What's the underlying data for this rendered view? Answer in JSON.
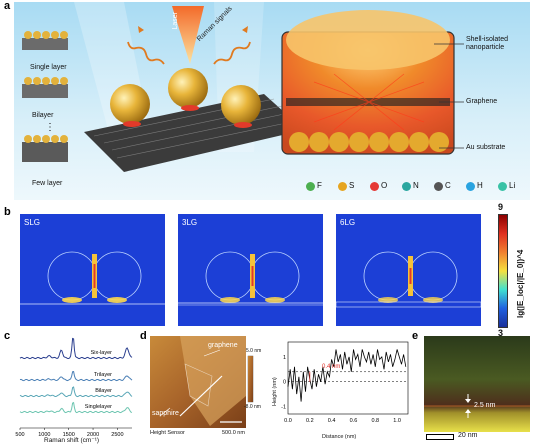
{
  "panel_labels": {
    "a": "a",
    "b": "b",
    "c": "c",
    "d": "d",
    "e": "e"
  },
  "panel_a": {
    "laser": "Laser",
    "raman": "Raman signals",
    "layers": [
      "Single layer",
      "Bilayer",
      "Few layer"
    ],
    "dots": "⋮",
    "callouts": {
      "shell": "Shell-isolated nanoparticle",
      "graphene": "Graphene",
      "au": "Au substrate"
    },
    "legend": [
      {
        "sym": "F",
        "color": "#4caf50"
      },
      {
        "sym": "S",
        "color": "#e6a520"
      },
      {
        "sym": "O",
        "color": "#e53935"
      },
      {
        "sym": "N",
        "color": "#2aa7a0"
      },
      {
        "sym": "C",
        "color": "#555555"
      },
      {
        "sym": "H",
        "color": "#29a3e0"
      },
      {
        "sym": "Li",
        "color": "#39c2a6"
      }
    ]
  },
  "panel_b": {
    "maps": [
      "SLG",
      "3LG",
      "6LG"
    ],
    "colorbar": {
      "max": "9",
      "min": "3",
      "label": "lg(|E_loc|/|E_0|)^4"
    }
  },
  "chart_data": {
    "type": "line",
    "xlabel": "Raman shift (cm⁻¹)",
    "x_ticks": [
      "500",
      "1000",
      "1500",
      "2000",
      "2500"
    ],
    "xlim": [
      500,
      2800
    ],
    "series": [
      {
        "name": "Six-layer",
        "color": "#2b3f8f"
      },
      {
        "name": "Trilayer",
        "color": "#4a7fb5"
      },
      {
        "name": "Bilayer",
        "color": "#5aa7b7"
      },
      {
        "name": "Singlelayer",
        "color": "#6cc5b0"
      }
    ]
  },
  "panel_d": {
    "graphene": "graphene",
    "sapphire": "sapphire",
    "sensor": "Height Sensor",
    "scale": "500.0 nm",
    "cb_max": "5.0 nm",
    "cb_min": "-8.0 nm",
    "step": "0.4 nm",
    "profile": {
      "ylabel": "Height (nm)",
      "xlabel": "Distance (nm)",
      "y_ticks": [
        "1",
        "0",
        "-1"
      ],
      "x_ticks": [
        "0.0",
        "0.2",
        "0.4",
        "0.6",
        "0.8",
        "1.0"
      ],
      "x": [
        0.0,
        0.02,
        0.04,
        0.06,
        0.08,
        0.1,
        0.12,
        0.14,
        0.16,
        0.18,
        0.2,
        0.22,
        0.24,
        0.26,
        0.28,
        0.3,
        0.32,
        0.34,
        0.36,
        0.38,
        0.4,
        0.42,
        0.44,
        0.46,
        0.48,
        0.5,
        0.52,
        0.54,
        0.56,
        0.58,
        0.6,
        0.62,
        0.64,
        0.66,
        0.68,
        0.7,
        0.72,
        0.74,
        0.76,
        0.78,
        0.8,
        0.82,
        0.84,
        0.86,
        0.88,
        0.9,
        0.92,
        0.94,
        0.96,
        0.98,
        1.0,
        1.02,
        1.04,
        1.06,
        1.08
      ],
      "y": [
        -0.2,
        0.5,
        -0.3,
        0.6,
        -0.5,
        0.2,
        -0.8,
        0.4,
        -0.4,
        0.6,
        0.1,
        -0.3,
        0.5,
        -0.2,
        0.3,
        0.0,
        0.6,
        -0.1,
        0.4,
        0.2,
        0.9,
        0.6,
        1.3,
        0.8,
        1.1,
        0.5,
        1.2,
        0.7,
        1.0,
        0.4,
        1.3,
        0.9,
        1.1,
        0.6,
        1.3,
        1.0,
        0.8,
        1.2,
        0.7,
        1.1,
        0.6,
        1.3,
        0.9,
        1.0,
        0.5,
        1.2,
        0.8,
        1.1,
        0.6,
        0.9,
        1.3,
        1.0,
        0.7,
        1.1,
        0.6
      ],
      "ylim": [
        -1.3,
        1.6
      ],
      "xlim": [
        0.0,
        1.1
      ]
    }
  },
  "panel_e": {
    "thickness": "2.5 nm",
    "scale": "20 nm"
  }
}
